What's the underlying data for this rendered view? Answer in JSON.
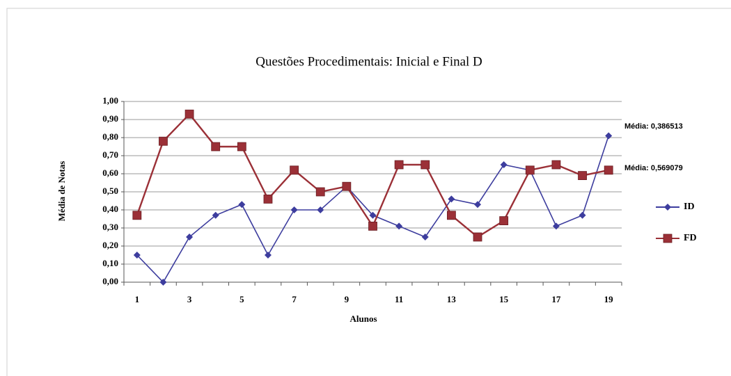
{
  "chart_data": {
    "type": "line",
    "title": "Questões Procedimentais: Inicial e Final D",
    "xlabel": "Alunos",
    "ylabel": "Média de Notas",
    "categories": [
      "1",
      null,
      "3",
      null,
      "5",
      null,
      "7",
      null,
      "9",
      null,
      "11",
      null,
      "13",
      null,
      "15",
      null,
      "17",
      null,
      "19"
    ],
    "series": [
      {
        "name": "ID",
        "color": "#3d3d9e",
        "marker": "diamond",
        "values": [
          0.15,
          0.0,
          0.25,
          0.37,
          0.43,
          0.15,
          0.4,
          0.4,
          0.53,
          0.37,
          0.31,
          0.25,
          0.46,
          0.43,
          0.65,
          0.62,
          0.31,
          0.37,
          0.81
        ]
      },
      {
        "name": "FD",
        "color": "#9b3037",
        "marker": "square",
        "values": [
          0.37,
          0.78,
          0.93,
          0.75,
          0.75,
          0.46,
          0.62,
          0.5,
          0.53,
          0.31,
          0.65,
          0.65,
          0.37,
          0.25,
          0.34,
          0.62,
          0.65,
          0.59,
          0.62
        ]
      }
    ],
    "annotations": [
      "Média: 0,386513",
      "Média: 0,569079"
    ],
    "ylim": [
      0,
      1
    ],
    "yticks": [
      {
        "value": 0,
        "label": "0,00"
      },
      {
        "value": 0.1,
        "label": "0,10"
      },
      {
        "value": 0.2,
        "label": "0,20"
      },
      {
        "value": 0.3,
        "label": "0,30"
      },
      {
        "value": 0.4,
        "label": "0,40"
      },
      {
        "value": 0.5,
        "label": "0,50"
      },
      {
        "value": 0.6,
        "label": "0,60"
      },
      {
        "value": 0.7,
        "label": "0,70"
      },
      {
        "value": 0.8,
        "label": "0,80"
      },
      {
        "value": 0.9,
        "label": "0,90"
      },
      {
        "value": 1,
        "label": "1,00"
      }
    ],
    "grid": true,
    "legend": "right"
  }
}
